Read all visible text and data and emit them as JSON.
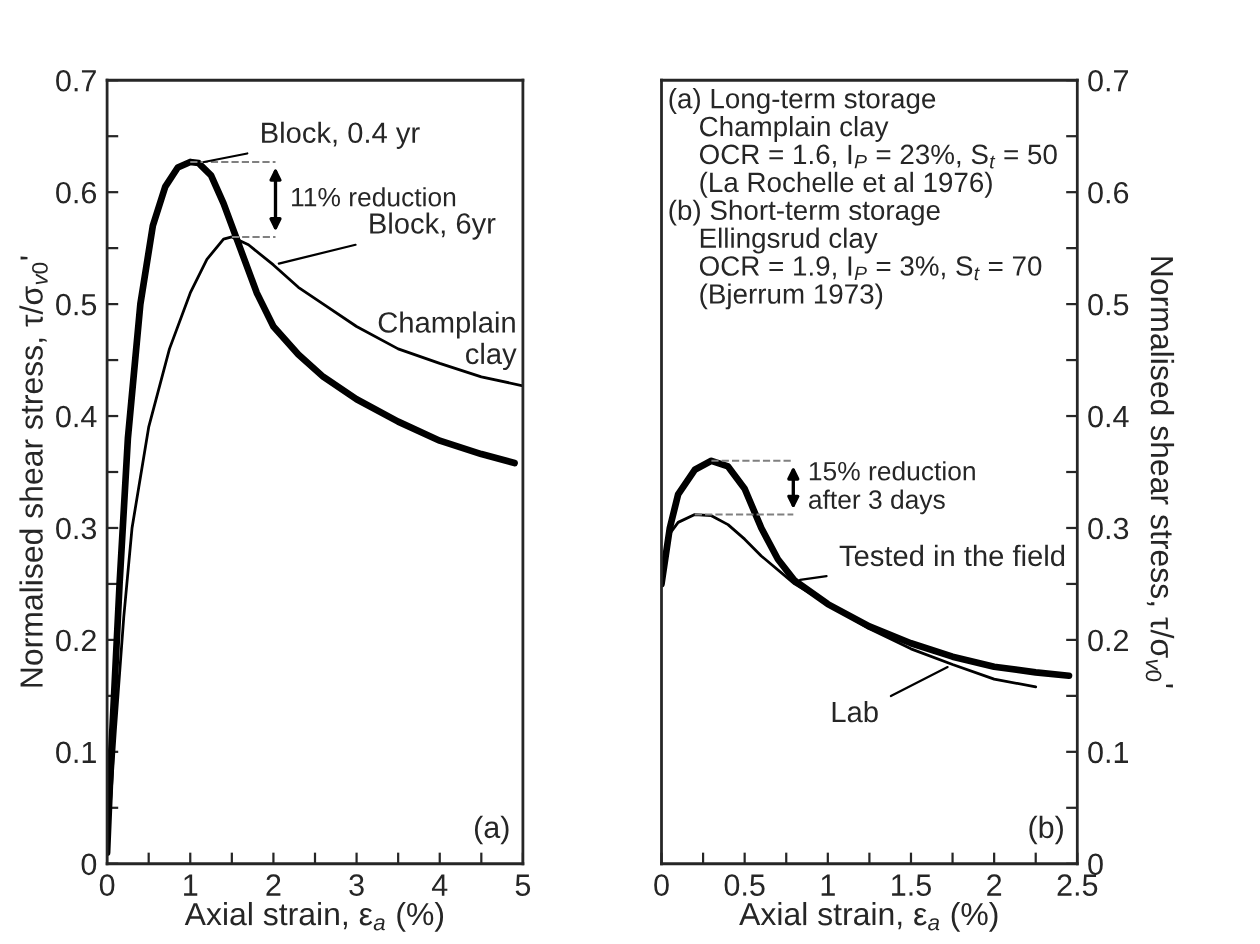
{
  "chart_data": [
    {
      "type": "line",
      "xlabel": "Axial strain, ε$_{a}$ (%)",
      "ylabel": "Normalised shear stress, τ/σ$_{v0}$'",
      "xlim": [
        0,
        5
      ],
      "xticks": [
        0,
        {
          "value": 0.5,
          "label": null
        },
        1,
        {
          "value": 1.5,
          "label": null
        },
        2,
        {
          "value": 2.5,
          "label": null
        },
        3,
        {
          "value": 3.5,
          "label": null
        },
        4,
        {
          "value": 4.5,
          "label": null
        },
        5
      ],
      "ylim": [
        0,
        0.7
      ],
      "yticks": [
        0,
        {
          "value": 0.05,
          "label": null
        },
        0.1,
        {
          "value": 0.15,
          "label": null
        },
        0.2,
        {
          "value": 0.25,
          "label": null
        },
        0.3,
        {
          "value": 0.35,
          "label": null
        },
        0.4,
        {
          "value": 0.45,
          "label": null
        },
        0.5,
        {
          "value": 0.55,
          "label": null
        },
        0.6,
        {
          "value": 0.65,
          "label": null
        },
        0.7
      ],
      "grid": false,
      "legend": false,
      "series": [
        {
          "name": "Block, 0.4 yr",
          "color": "#000000",
          "x": [
            0,
            0.05,
            0.15,
            0.25,
            0.4,
            0.55,
            0.7,
            0.85,
            1.0,
            1.1,
            1.25,
            1.4,
            1.6,
            1.8,
            2.0,
            2.3,
            2.6,
            3.0,
            3.5,
            4.0,
            4.5,
            4.9
          ],
          "values": [
            0.01,
            0.1,
            0.25,
            0.38,
            0.5,
            0.57,
            0.605,
            0.622,
            0.627,
            0.626,
            0.615,
            0.59,
            0.55,
            0.51,
            0.48,
            0.455,
            0.435,
            0.415,
            0.395,
            0.378,
            0.366,
            0.358
          ]
        },
        {
          "name": "Block, 6yr",
          "color": "#000000",
          "x": [
            0,
            0.1,
            0.2,
            0.3,
            0.5,
            0.75,
            1.0,
            1.2,
            1.4,
            1.5,
            1.7,
            2.0,
            2.3,
            2.6,
            3.0,
            3.5,
            4.0,
            4.5,
            5.0
          ],
          "values": [
            0.01,
            0.12,
            0.22,
            0.3,
            0.39,
            0.46,
            0.51,
            0.54,
            0.558,
            0.56,
            0.553,
            0.535,
            0.515,
            0.5,
            0.48,
            0.46,
            0.447,
            0.435,
            0.427
          ]
        }
      ],
      "annotations": [
        {
          "text": "11% reduction",
          "x": 1.0,
          "y": 0.627
        },
        "Champlain\nclay",
        "(a)"
      ]
    },
    {
      "type": "line",
      "xlabel": "Axial strain, ε$_{a}$ (%)",
      "ylabel": "Normalised shear stress, τ/σ$_{v0}$'",
      "xlim": [
        0,
        2.5
      ],
      "xticks": [
        0,
        {
          "value": 0.25,
          "label": null
        },
        0.5,
        {
          "value": 0.75,
          "label": null
        },
        1,
        {
          "value": 1.25,
          "label": null
        },
        1.5,
        {
          "value": 1.75,
          "label": null
        },
        2,
        {
          "value": 2.25,
          "label": null
        },
        2.5
      ],
      "ylim": [
        0,
        0.7
      ],
      "yticks": [
        0,
        {
          "value": 0.05,
          "label": null
        },
        0.1,
        {
          "value": 0.15,
          "label": null
        },
        0.2,
        {
          "value": 0.25,
          "label": null
        },
        0.3,
        {
          "value": 0.35,
          "label": null
        },
        0.4,
        {
          "value": 0.45,
          "label": null
        },
        0.5,
        {
          "value": 0.55,
          "label": null
        },
        0.6,
        {
          "value": 0.65,
          "label": null
        },
        0.7
      ],
      "grid": false,
      "legend": false,
      "series": [
        {
          "name": "Tested in the field",
          "color": "#000000",
          "x": [
            0,
            0.05,
            0.1,
            0.2,
            0.3,
            0.4,
            0.5,
            0.6,
            0.7,
            0.8,
            1.0,
            1.25,
            1.5,
            1.75,
            2.0,
            2.25,
            2.45
          ],
          "values": [
            0.25,
            0.3,
            0.33,
            0.352,
            0.36,
            0.355,
            0.335,
            0.3,
            0.272,
            0.253,
            0.232,
            0.212,
            0.197,
            0.185,
            0.176,
            0.171,
            0.168
          ]
        },
        {
          "name": "Lab",
          "color": "#000000",
          "x": [
            0,
            0.05,
            0.1,
            0.2,
            0.3,
            0.4,
            0.5,
            0.6,
            0.8,
            1.0,
            1.25,
            1.5,
            1.75,
            2.0,
            2.25
          ],
          "values": [
            0.25,
            0.295,
            0.305,
            0.312,
            0.311,
            0.303,
            0.29,
            0.275,
            0.25,
            0.232,
            0.21,
            0.192,
            0.178,
            0.165,
            0.158
          ]
        }
      ],
      "annotations": [
        {
          "text": "15% reduction\nafter 3 days",
          "x": 0.3,
          "y": 0.36
        },
        "(a) Long-term storage\n    Champlain clay\n    OCR = 1.6, I$_{P}$ = 23%, S$_{t}$ = 50\n    (La Rochelle et al 1976)\n(b) Short-term storage\n    Ellingsrud clay\n    OCR = 1.9, I$_{P}$ = 3%, S$_{t}$ = 70\n    (Bjerrum 1973)",
        "(b)"
      ]
    }
  ]
}
